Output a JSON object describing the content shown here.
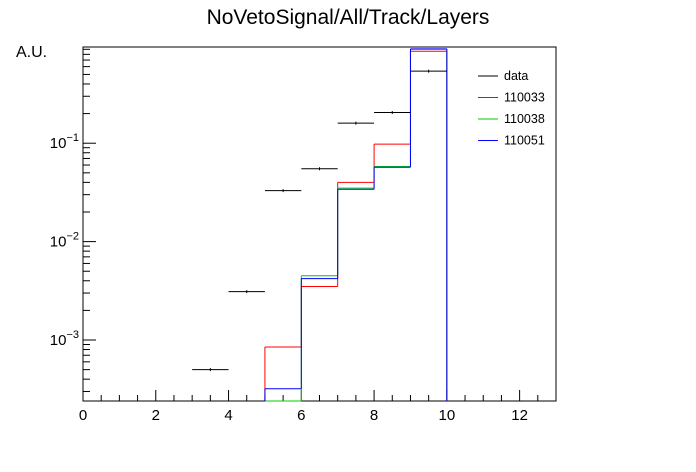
{
  "chart_data": {
    "type": "histogram",
    "title": "NoVetoSignal/All/Track/Layers",
    "xlabel": "",
    "ylabel": "A.U.",
    "xlim": [
      0,
      13
    ],
    "ylim": [
      0.00024,
      0.95
    ],
    "yscale": "log",
    "x_ticks": [
      "0",
      "2",
      "4",
      "6",
      "8",
      "10",
      "12"
    ],
    "y_ticks": [
      {
        "value": 0.001,
        "base": "10",
        "exp": "−3"
      },
      {
        "value": 0.01,
        "base": "10",
        "exp": "−2"
      },
      {
        "value": 0.1,
        "base": "10",
        "exp": "−1"
      }
    ],
    "legend_position": "top-right",
    "series": [
      {
        "name": "data",
        "color": "#000000",
        "style": "points",
        "points": [
          {
            "x0": 3,
            "x1": 4,
            "y": 0.0005
          },
          {
            "x0": 4,
            "x1": 5,
            "y": 0.0031
          },
          {
            "x0": 5,
            "x1": 6,
            "y": 0.033
          },
          {
            "x0": 6,
            "x1": 7,
            "y": 0.055
          },
          {
            "x0": 7,
            "x1": 8,
            "y": 0.16
          },
          {
            "x0": 8,
            "x1": 9,
            "y": 0.205
          },
          {
            "x0": 9,
            "x1": 10,
            "y": 0.54
          }
        ]
      },
      {
        "name": "110033",
        "color": "#ff0000",
        "style": "hist",
        "bins": [
          {
            "x0": 5,
            "x1": 6,
            "y": 0.00085
          },
          {
            "x0": 6,
            "x1": 7,
            "y": 0.0035
          },
          {
            "x0": 7,
            "x1": 8,
            "y": 0.04
          },
          {
            "x0": 8,
            "x1": 9,
            "y": 0.098
          },
          {
            "x0": 9,
            "x1": 10,
            "y": 0.86
          }
        ]
      },
      {
        "name": "110038",
        "color": "#00cc00",
        "style": "hist",
        "bins": [
          {
            "x0": 5,
            "x1": 6,
            "y": 0.00024
          },
          {
            "x0": 6,
            "x1": 7,
            "y": 0.0045
          },
          {
            "x0": 7,
            "x1": 8,
            "y": 0.035
          },
          {
            "x0": 8,
            "x1": 9,
            "y": 0.058
          },
          {
            "x0": 9,
            "x1": 10,
            "y": 0.9
          }
        ]
      },
      {
        "name": "110051",
        "color": "#0000ff",
        "style": "hist",
        "bins": [
          {
            "x0": 5,
            "x1": 6,
            "y": 0.00032
          },
          {
            "x0": 6,
            "x1": 7,
            "y": 0.0042
          },
          {
            "x0": 7,
            "x1": 8,
            "y": 0.034
          },
          {
            "x0": 8,
            "x1": 9,
            "y": 0.057
          },
          {
            "x0": 9,
            "x1": 10,
            "y": 0.91
          }
        ]
      }
    ]
  }
}
